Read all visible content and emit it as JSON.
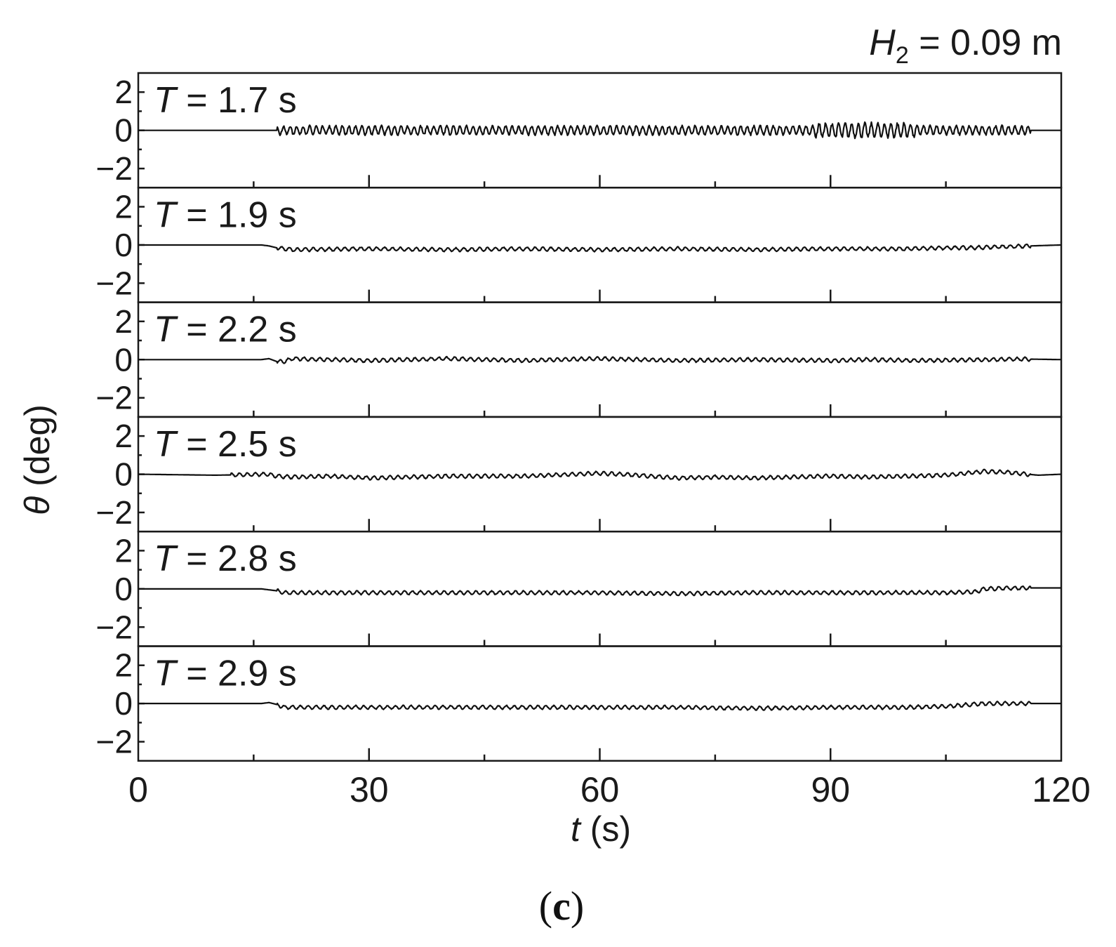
{
  "chart_data": {
    "type": "line",
    "header": {
      "symbol": "H",
      "subscript": "2",
      "value": " = 0.09 m"
    },
    "xlabel": {
      "symbol": "t",
      "unit": " (s)"
    },
    "ylabel": {
      "symbol": "θ",
      "unit": " (deg)"
    },
    "xlim": [
      0,
      120
    ],
    "ylim": [
      -3,
      3
    ],
    "x_ticks": [
      0,
      30,
      60,
      90,
      120
    ],
    "x_tick_labels": [
      "0",
      "30",
      "60",
      "90",
      "120"
    ],
    "x_minor_ticks": [
      15,
      45,
      75,
      105
    ],
    "y_ticks": [
      2,
      0,
      -2
    ],
    "y_tick_labels": [
      "2",
      "0",
      "−2"
    ],
    "y_minor_ticks": [
      1,
      -1
    ],
    "grid": false,
    "caption": {
      "open": "(",
      "letter": "c",
      "close": ")"
    },
    "panels": [
      {
        "label_symbol": "T",
        "label_value": " = 1.7 s",
        "x": [
          0,
          16,
          17,
          18,
          19,
          20,
          25,
          30,
          40,
          50,
          60,
          70,
          80,
          90,
          95,
          98,
          100,
          101,
          102,
          103,
          105,
          110,
          114,
          118,
          120
        ],
        "y": [
          0,
          0,
          -0.05,
          0.05,
          -0.1,
          0.1,
          -0.15,
          0.15,
          -0.2,
          0.2,
          -0.2,
          0.25,
          -0.3,
          0.35,
          -0.35,
          0.4,
          -0.4,
          0.3,
          -0.15,
          0.1,
          -0.1,
          0.08,
          -0.05,
          0.03,
          0
        ]
      },
      {
        "label_symbol": "T",
        "label_value": " = 1.9 s",
        "x": [
          0,
          16,
          17,
          18,
          19,
          20,
          30,
          40,
          50,
          60,
          70,
          80,
          90,
          100,
          105,
          108,
          112,
          116,
          120
        ],
        "y": [
          0,
          0,
          -0.05,
          -0.15,
          -0.2,
          -0.25,
          -0.2,
          -0.25,
          -0.2,
          -0.25,
          -0.2,
          -0.25,
          -0.2,
          -0.2,
          -0.15,
          -0.15,
          -0.1,
          -0.05,
          0
        ]
      },
      {
        "label_symbol": "T",
        "label_value": " = 2.2 s",
        "x": [
          0,
          16,
          17,
          18,
          19,
          20,
          30,
          40,
          50,
          60,
          70,
          80,
          90,
          95,
          100,
          105,
          110,
          115,
          120
        ],
        "y": [
          0,
          0,
          0.05,
          -0.1,
          -0.1,
          0.05,
          -0.05,
          0.05,
          -0.05,
          0.05,
          -0.05,
          0.0,
          -0.05,
          0.0,
          -0.05,
          -0.03,
          0.0,
          0.03,
          0
        ]
      },
      {
        "label_symbol": "T",
        "label_value": " = 2.5 s",
        "x": [
          0,
          10,
          17,
          18,
          20,
          25,
          30,
          40,
          50,
          60,
          65,
          70,
          75,
          80,
          90,
          95,
          100,
          105,
          110,
          113,
          117,
          120
        ],
        "y": [
          0,
          -0.05,
          0.0,
          -0.1,
          -0.15,
          -0.1,
          -0.2,
          -0.1,
          -0.1,
          0.05,
          -0.05,
          -0.2,
          -0.15,
          -0.2,
          -0.1,
          -0.15,
          -0.1,
          -0.05,
          0.15,
          0.1,
          -0.05,
          0
        ]
      },
      {
        "label_symbol": "T",
        "label_value": " = 2.8 s",
        "x": [
          0,
          16,
          17,
          18,
          19,
          20,
          30,
          40,
          50,
          60,
          70,
          80,
          90,
          100,
          105,
          109,
          110,
          115,
          120
        ],
        "y": [
          0,
          0,
          -0.05,
          -0.1,
          -0.2,
          -0.2,
          -0.2,
          -0.2,
          -0.2,
          -0.2,
          -0.25,
          -0.2,
          -0.2,
          -0.2,
          -0.2,
          -0.15,
          0.0,
          0.05,
          0.05
        ]
      },
      {
        "label_symbol": "T",
        "label_value": " = 2.9 s",
        "x": [
          0,
          16,
          17,
          18,
          19,
          20,
          30,
          40,
          50,
          60,
          70,
          80,
          90,
          100,
          105,
          110,
          115,
          120
        ],
        "y": [
          0,
          0,
          0.05,
          -0.05,
          -0.2,
          -0.2,
          -0.2,
          -0.2,
          -0.2,
          -0.2,
          -0.2,
          -0.25,
          -0.2,
          -0.2,
          -0.15,
          0.0,
          0.0,
          0.0
        ]
      }
    ]
  }
}
